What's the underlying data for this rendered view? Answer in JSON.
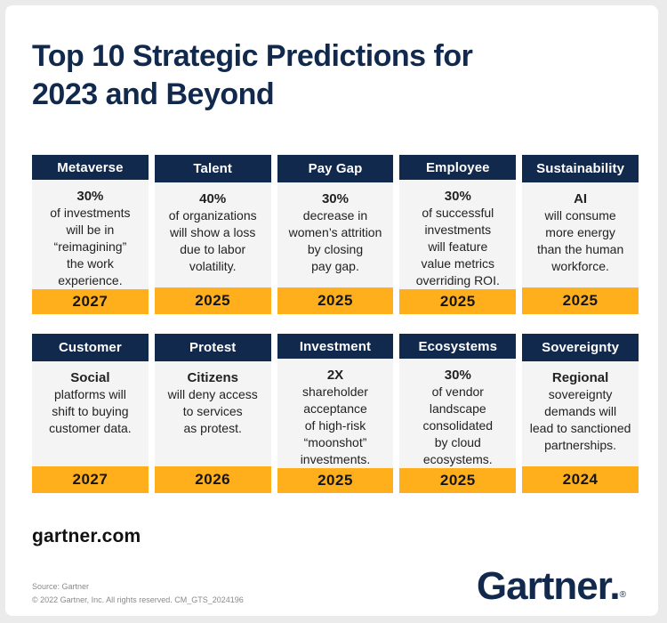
{
  "page": {
    "title": "Top 10 Strategic Predictions for\n2023 and Beyond",
    "website": "gartner.com",
    "source_line1": "Source: Gartner",
    "source_line2": "© 2022 Gartner, Inc. All rights reserved. CM_GTS_2024196",
    "logo": {
      "text": "Gartner.",
      "reg": "®"
    }
  },
  "colors": {
    "navy": "#12294e",
    "orange": "#ffae1c",
    "panel": "#ffffff",
    "background": "#ebebec",
    "card_body": "#f4f4f5"
  },
  "cards": [
    {
      "header": "Metaverse",
      "lead": "30%",
      "text": "of investments\nwill be in\n“reimagining”\nthe work\nexperience.",
      "year": "2027"
    },
    {
      "header": "Talent",
      "lead": "40%",
      "text": "of organizations\nwill show a loss\ndue to labor\nvolatility.",
      "year": "2025"
    },
    {
      "header": "Pay Gap",
      "lead": "30%",
      "text": "decrease in\nwomen’s attrition\nby closing\npay gap.",
      "year": "2025"
    },
    {
      "header": "Employee",
      "lead": "30%",
      "text": "of successful\ninvestments\nwill feature\nvalue metrics\noverriding ROI.",
      "year": "2025"
    },
    {
      "header": "Sustainability",
      "lead": "AI",
      "text": "will consume\nmore energy\nthan the human\nworkforce.",
      "year": "2025"
    },
    {
      "header": "Customer",
      "lead": "Social",
      "text": "platforms will\nshift to buying\ncustomer data.",
      "year": "2027"
    },
    {
      "header": "Protest",
      "lead": "Citizens",
      "text": "will deny access\nto services\nas protest.",
      "year": "2026"
    },
    {
      "header": "Investment",
      "lead": "2X",
      "text": "shareholder\nacceptance\nof high-risk\n“moonshot”\ninvestments.",
      "year": "2025"
    },
    {
      "header": "Ecosystems",
      "lead": "30%",
      "text": "of vendor\nlandscape\nconsolidated\nby cloud\necosystems.",
      "year": "2025"
    },
    {
      "header": "Sovereignty",
      "lead": "Regional",
      "text": "sovereignty\ndemands will\nlead to sanctioned\npartnerships.",
      "year": "2024"
    }
  ]
}
